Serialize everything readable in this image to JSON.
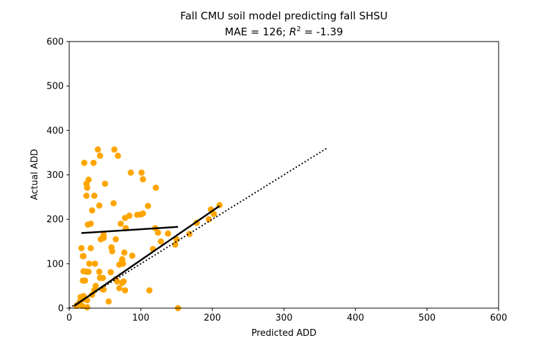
{
  "chart_data": {
    "type": "scatter",
    "title_line1": "Fall CMU soil model predicting fall SHSU",
    "title_line2_prefix": "MAE = 126; ",
    "title_line2_r": "R",
    "title_line2_sup": "2",
    "title_line2_suffix": " = -1.39",
    "xlabel": "Predicted ADD",
    "ylabel": "Actual ADD",
    "xlim": [
      0,
      600
    ],
    "ylim": [
      0,
      600
    ],
    "xticks": [
      0,
      100,
      200,
      300,
      400,
      500,
      600
    ],
    "yticks": [
      0,
      100,
      200,
      300,
      400,
      500,
      600
    ],
    "grid": false,
    "point_color": "#FFA500",
    "line_color": "#000000",
    "points": [
      [
        17,
        135
      ],
      [
        19,
        117
      ],
      [
        20,
        117
      ],
      [
        20,
        83
      ],
      [
        19,
        62
      ],
      [
        22,
        62
      ],
      [
        21,
        327
      ],
      [
        24,
        280
      ],
      [
        25,
        271
      ],
      [
        24,
        253
      ],
      [
        27,
        289
      ],
      [
        26,
        188
      ],
      [
        30,
        190
      ],
      [
        32,
        220
      ],
      [
        30,
        135
      ],
      [
        28,
        100
      ],
      [
        27,
        82
      ],
      [
        24,
        82
      ],
      [
        34,
        327
      ],
      [
        35,
        253
      ],
      [
        36,
        100
      ],
      [
        37,
        50
      ],
      [
        40,
        357
      ],
      [
        43,
        343
      ],
      [
        42,
        231
      ],
      [
        42,
        82
      ],
      [
        43,
        68
      ],
      [
        48,
        165
      ],
      [
        48,
        158
      ],
      [
        50,
        280
      ],
      [
        48,
        42
      ],
      [
        55,
        15
      ],
      [
        59,
        137
      ],
      [
        60,
        128
      ],
      [
        58,
        81
      ],
      [
        62,
        236
      ],
      [
        63,
        357
      ],
      [
        65,
        155
      ],
      [
        68,
        343
      ],
      [
        70,
        98
      ],
      [
        72,
        190
      ],
      [
        74,
        110
      ],
      [
        74,
        105
      ],
      [
        75,
        100
      ],
      [
        74,
        57
      ],
      [
        77,
        125
      ],
      [
        78,
        40
      ],
      [
        78,
        203
      ],
      [
        79,
        180
      ],
      [
        84,
        208
      ],
      [
        86,
        305
      ],
      [
        88,
        118
      ],
      [
        95,
        210
      ],
      [
        100,
        211
      ],
      [
        101,
        305
      ],
      [
        103,
        290
      ],
      [
        103,
        213
      ],
      [
        110,
        230
      ],
      [
        112,
        40
      ],
      [
        117,
        133
      ],
      [
        121,
        271
      ],
      [
        120,
        180
      ],
      [
        124,
        170
      ],
      [
        128,
        150
      ],
      [
        138,
        168
      ],
      [
        148,
        143
      ],
      [
        152,
        0
      ],
      [
        150,
        155
      ],
      [
        168,
        167
      ],
      [
        178,
        192
      ],
      [
        195,
        200
      ],
      [
        198,
        222
      ],
      [
        202,
        212
      ],
      [
        210,
        232
      ],
      [
        16,
        25
      ],
      [
        20,
        27
      ],
      [
        22,
        20
      ],
      [
        15,
        15
      ],
      [
        12,
        8
      ],
      [
        10,
        5
      ],
      [
        18,
        5
      ],
      [
        25,
        18
      ],
      [
        25,
        2
      ],
      [
        32,
        30
      ],
      [
        35,
        40
      ],
      [
        47,
        42
      ],
      [
        65,
        65
      ],
      [
        67,
        60
      ],
      [
        70,
        45
      ],
      [
        76,
        60
      ],
      [
        44,
        155
      ],
      [
        47,
        68
      ]
    ],
    "fit_line_1": {
      "x": [
        17,
        152
      ],
      "y": [
        169,
        183
      ]
    },
    "fit_line_2": {
      "x": [
        7,
        210
      ],
      "y": [
        5,
        230
      ]
    },
    "identity_line": {
      "x": [
        0,
        360
      ],
      "y": [
        0,
        360
      ],
      "style": "dotted"
    }
  }
}
